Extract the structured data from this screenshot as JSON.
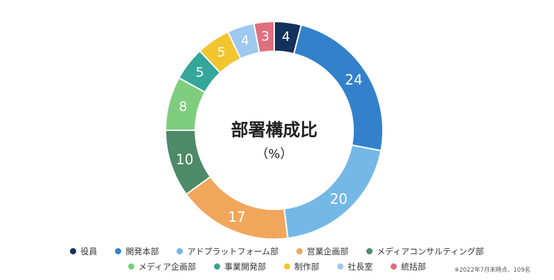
{
  "chart_data": {
    "type": "pie",
    "style": "donut",
    "title": "部署構成比",
    "subtitle": "（%）",
    "slices": [
      {
        "name": "役員",
        "value": 4,
        "color": "#14305c"
      },
      {
        "name": "開発本部",
        "value": 24,
        "color": "#3381cb"
      },
      {
        "name": "アドプラットフォーム部",
        "value": 20,
        "color": "#74b8e6"
      },
      {
        "name": "営業企画部",
        "value": 17,
        "color": "#f0a75c"
      },
      {
        "name": "メディアコンサルティング部",
        "value": 10,
        "color": "#4d8a68"
      },
      {
        "name": "メディア企画部",
        "value": 8,
        "color": "#7ecd7e"
      },
      {
        "name": "事業開発部",
        "value": 5,
        "color": "#34a69a"
      },
      {
        "name": "制作部",
        "value": 5,
        "color": "#f2c530"
      },
      {
        "name": "社長室",
        "value": 4,
        "color": "#9dc8f0"
      },
      {
        "name": "統括部",
        "value": 3,
        "color": "#df6f7d"
      }
    ],
    "legend": "bottom-center",
    "footnote": "※2022年7月末時点、109名"
  }
}
